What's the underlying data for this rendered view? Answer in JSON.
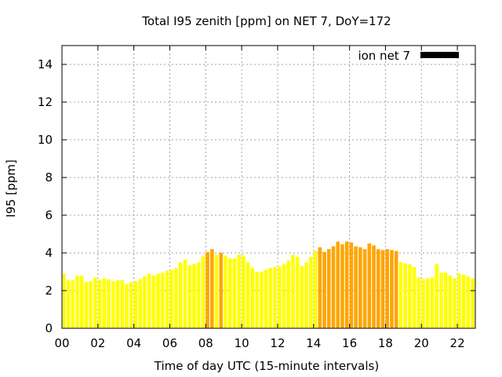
{
  "chart_data": {
    "type": "bar",
    "title": "Total I95 zenith [ppm] on NET 7, DoY=172",
    "xlabel": "Time of day UTC (15-minute intervals)",
    "ylabel": "I95 [ppm]",
    "xlim": [
      0,
      23
    ],
    "ylim": [
      0,
      15
    ],
    "x_ticks": [
      0,
      2,
      4,
      6,
      8,
      10,
      12,
      14,
      16,
      18,
      20,
      22
    ],
    "x_tick_labels": [
      "00",
      "02",
      "04",
      "06",
      "08",
      "10",
      "12",
      "14",
      "16",
      "18",
      "20",
      "22"
    ],
    "y_ticks": [
      0,
      2,
      4,
      6,
      8,
      10,
      12,
      14
    ],
    "y_tick_labels": [
      "0",
      "2",
      "4",
      "6",
      "8",
      "10",
      "12",
      "14"
    ],
    "bar_width_hours": 0.2,
    "grid": true,
    "legend": {
      "placement": "top-right",
      "entries": [
        {
          "label": "ion net 7",
          "color": "#000000"
        }
      ]
    },
    "colors": {
      "low": "#ffff00",
      "mid": "#f5d000",
      "high": "#ffa500",
      "grid": "#a0a0a0"
    },
    "series": [
      {
        "name": "ion net 7",
        "x": [
          0,
          0.25,
          0.5,
          0.75,
          1,
          1.25,
          1.5,
          1.75,
          2,
          2.25,
          2.5,
          2.75,
          3,
          3.25,
          3.5,
          3.75,
          4,
          4.25,
          4.5,
          4.75,
          5,
          5.25,
          5.5,
          5.75,
          6,
          6.25,
          6.5,
          6.75,
          7,
          7.25,
          7.5,
          7.75,
          8,
          8.25,
          8.5,
          8.75,
          9,
          9.25,
          9.5,
          9.75,
          10,
          10.25,
          10.5,
          10.75,
          11,
          11.25,
          11.5,
          11.75,
          12,
          12.25,
          12.5,
          12.75,
          13,
          13.25,
          13.5,
          13.75,
          14,
          14.25,
          14.5,
          14.75,
          15,
          15.25,
          15.5,
          15.75,
          16,
          16.25,
          16.5,
          16.75,
          17,
          17.25,
          17.5,
          17.75,
          18,
          18.25,
          18.5,
          18.75,
          19,
          19.25,
          19.5,
          19.75,
          20,
          20.25,
          20.5,
          20.75,
          21,
          21.25,
          21.5,
          21.75,
          22,
          22.25,
          22.5,
          22.75
        ],
        "values": [
          2.9,
          2.55,
          2.55,
          2.8,
          2.8,
          2.45,
          2.5,
          2.7,
          2.55,
          2.65,
          2.6,
          2.5,
          2.55,
          2.55,
          2.35,
          2.45,
          2.5,
          2.6,
          2.75,
          2.9,
          2.8,
          2.9,
          2.95,
          3.05,
          3.1,
          3.2,
          3.5,
          3.65,
          3.35,
          3.4,
          3.5,
          3.85,
          4.05,
          4.2,
          3.9,
          4.0,
          3.85,
          3.7,
          3.7,
          3.9,
          3.85,
          3.5,
          3.2,
          3.0,
          3.0,
          3.1,
          3.2,
          3.25,
          3.3,
          3.4,
          3.6,
          3.9,
          3.8,
          3.3,
          3.5,
          3.8,
          4.1,
          4.3,
          4.05,
          4.2,
          4.35,
          4.6,
          4.45,
          4.6,
          4.55,
          4.35,
          4.3,
          4.2,
          4.5,
          4.4,
          4.2,
          4.15,
          4.2,
          4.15,
          4.1,
          3.5,
          3.45,
          3.4,
          3.25,
          2.7,
          2.6,
          2.65,
          2.7,
          3.4,
          2.95,
          2.95,
          2.8,
          2.65,
          2.9,
          2.85,
          2.75,
          2.65
        ],
        "colors": [
          "#ffff00",
          "#ffff00",
          "#ffff00",
          "#ffff00",
          "#ffff00",
          "#ffff00",
          "#ffff00",
          "#ffff00",
          "#ffff00",
          "#ffff00",
          "#ffff00",
          "#ffff00",
          "#ffff00",
          "#ffff00",
          "#ffff00",
          "#ffff00",
          "#ffff00",
          "#ffff00",
          "#ffff00",
          "#ffff00",
          "#ffff00",
          "#ffff00",
          "#ffff00",
          "#ffff00",
          "#ffff00",
          "#ffff00",
          "#ffff00",
          "#ffff00",
          "#ffff00",
          "#ffff00",
          "#ffff00",
          "#ffff00",
          "#ffa500",
          "#ffa500",
          "#ffff00",
          "#ffa500",
          "#ffff00",
          "#ffff00",
          "#ffff00",
          "#ffff00",
          "#ffff00",
          "#ffff00",
          "#ffff00",
          "#ffff00",
          "#ffff00",
          "#ffff00",
          "#ffff00",
          "#ffff00",
          "#ffff00",
          "#ffff00",
          "#ffff00",
          "#ffff00",
          "#ffff00",
          "#ffff00",
          "#ffff00",
          "#ffff00",
          "#ffff00",
          "#ffa500",
          "#ffa500",
          "#ffa500",
          "#ffa500",
          "#ffa500",
          "#ffa500",
          "#ffa500",
          "#ffa500",
          "#ffa500",
          "#ffa500",
          "#ffa500",
          "#ffa500",
          "#ffa500",
          "#ffa500",
          "#ffa500",
          "#ffa500",
          "#ffa500",
          "#ffa500",
          "#ffff00",
          "#ffff00",
          "#ffff00",
          "#ffff00",
          "#ffff00",
          "#ffff00",
          "#ffff00",
          "#ffff00",
          "#ffff00",
          "#ffff00",
          "#ffff00",
          "#ffff00",
          "#ffff00",
          "#ffff00",
          "#ffff00",
          "#ffff00",
          "#ffff00"
        ]
      }
    ]
  }
}
